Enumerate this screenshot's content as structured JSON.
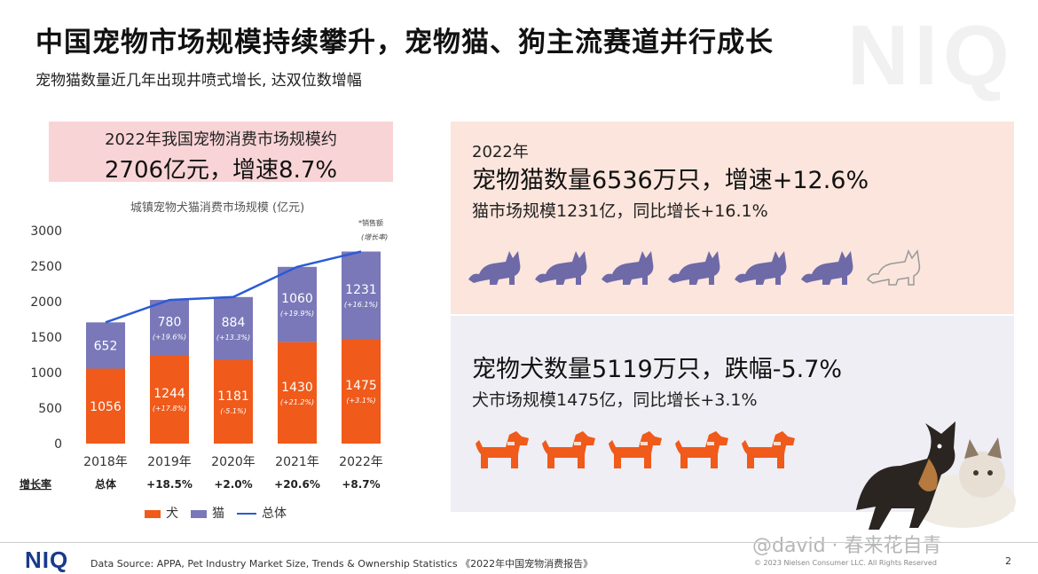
{
  "title": "中国宠物市场规模持续攀升，宠物猫、狗主流赛道并行成长",
  "subtitle": "宠物猫数量近几年出现井喷式增长, 达双位数增幅",
  "watermark_brand": "NIQ",
  "market_box": {
    "line1": "2022年我国宠物消费市场规模约",
    "line2": "2706亿元，增速8.7%"
  },
  "chart_data": {
    "type": "bar",
    "title": "城镇宠物犬猫消费市场规模 (亿元)",
    "note_top": "*销售额",
    "note_growth": "(增长率)",
    "categories": [
      "2018年",
      "2019年",
      "2020年",
      "2021年",
      "2022年"
    ],
    "series": [
      {
        "name": "犬",
        "values": [
          1056,
          1244,
          1181,
          1430,
          1475
        ],
        "growth": [
          "",
          "(+17.8%)",
          "(-5.1%)",
          "(+21.2%)",
          "(+3.1%)"
        ],
        "color": "#f05a1a"
      },
      {
        "name": "猫",
        "values": [
          652,
          780,
          884,
          1060,
          1231
        ],
        "growth": [
          "",
          "(+19.6%)",
          "(+13.3%)",
          "(+19.9%)",
          "(+16.1%)"
        ],
        "color": "#7a78b8"
      },
      {
        "name": "总体",
        "values": [
          1708,
          2024,
          2065,
          2490,
          2706
        ],
        "color": "#2a5bd7"
      }
    ],
    "yticks": [
      0,
      500,
      1000,
      1500,
      2000,
      2500,
      3000
    ],
    "ylim": [
      0,
      3000
    ],
    "growth_row_label": "增长率",
    "growth_row": [
      "总体",
      "+18.5%",
      "+2.0%",
      "+20.6%",
      "+8.7%"
    ]
  },
  "cat_panel": {
    "year": "2022年",
    "main": "宠物猫数量6536万只，增速+12.6%",
    "sub": "猫市场规模1231亿，同比增长+16.1%",
    "filled_icons": 6,
    "total_icons": 7,
    "icon_color": "#6e6aa8"
  },
  "dog_panel": {
    "main": "宠物犬数量5119万只，跌幅-5.7%",
    "sub": "犬市场规模1475亿，同比增长+3.1%",
    "filled_icons": 5,
    "icon_color": "#f05a1a"
  },
  "footer": {
    "logo": "NIQ",
    "source": "Data Source: APPA, Pet Industry Market Size, Trends & Ownership Statistics 《2022年中国宠物消费报告》",
    "copyright": "© 2023 Nielsen Consumer LLC. All Rights Reserved",
    "page": "2",
    "watermark": "@david · 春来花自青"
  }
}
